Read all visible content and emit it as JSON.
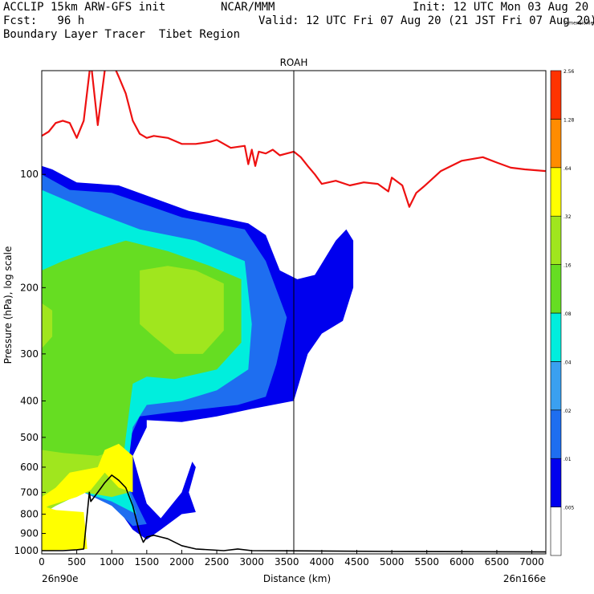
{
  "header": {
    "line1_left": "ACCLIP 15km ARW-GFS init",
    "line1_mid": "NCAR/MMM",
    "line1_right": "Init: 12 UTC Mon 03 Aug 20",
    "line2_left": "Fcst:   96 h",
    "line2_right": "Valid: 12 UTC Fri 07 Aug 20 (21 JST Fri 07 Aug 20)",
    "line3_left": "Boundary Layer Tracer  Tibet Region"
  },
  "colors": {
    "red_line": "#ee1111",
    "terrain_line": "#000000",
    "levels": [
      "#ffffff",
      "#0000ee",
      "#1e6ef0",
      "#3aa0f0",
      "#00eedd",
      "#66dd22",
      "#a0e61e",
      "#ffff00",
      "#ff8c00",
      "#ff3300"
    ]
  },
  "chart_data": {
    "type": "heatmap",
    "title": "ROAH",
    "xlabel": "Distance (km)",
    "ylabel": "Pressure (hPa), log scale",
    "x_ticks": [
      0,
      500,
      1000,
      1500,
      2000,
      2500,
      3000,
      3500,
      4000,
      4500,
      5000,
      5500,
      6000,
      6500,
      7000
    ],
    "y_ticks": [
      100,
      200,
      300,
      400,
      500,
      600,
      700,
      800,
      900,
      1000
    ],
    "xlim": [
      0,
      7200
    ],
    "ylim_hpa": [
      1020,
      53
    ],
    "y_log_scale": true,
    "x_endpoints": {
      "left": "26n90e",
      "right": "26n166e"
    },
    "vertical_marker_km": 3600,
    "colorbar_labels": [
      ".005",
      ".01",
      ".02",
      ".04",
      ".08",
      ".16",
      ".32",
      ".64",
      "1.28",
      "2.56",
      "Dimensionless"
    ],
    "series": [
      {
        "values": [
          [
            0,
            79
          ],
          [
            100,
            77
          ],
          [
            200,
            73
          ],
          [
            300,
            72
          ],
          [
            400,
            73
          ],
          [
            500,
            80
          ],
          [
            600,
            72
          ],
          [
            700,
            50
          ],
          [
            800,
            74
          ],
          [
            900,
            53
          ],
          [
            1000,
            50
          ],
          [
            1100,
            55
          ],
          [
            1200,
            61
          ],
          [
            1300,
            72
          ],
          [
            1400,
            78
          ],
          [
            1500,
            80
          ],
          [
            1600,
            79
          ],
          [
            1800,
            80
          ],
          [
            2000,
            83
          ],
          [
            2200,
            83
          ],
          [
            2400,
            82
          ],
          [
            2500,
            81
          ],
          [
            2700,
            85
          ],
          [
            2900,
            84
          ],
          [
            2950,
            94
          ],
          [
            3000,
            86
          ],
          [
            3050,
            95
          ],
          [
            3100,
            87
          ],
          [
            3200,
            88
          ],
          [
            3300,
            86
          ],
          [
            3400,
            89
          ],
          [
            3500,
            88
          ],
          [
            3600,
            87
          ],
          [
            3700,
            90
          ],
          [
            3800,
            95
          ],
          [
            3900,
            100
          ],
          [
            4000,
            106
          ],
          [
            4200,
            104
          ],
          [
            4400,
            107
          ],
          [
            4600,
            105
          ],
          [
            4800,
            106
          ],
          [
            4950,
            111
          ],
          [
            5000,
            102
          ],
          [
            5150,
            107
          ],
          [
            5250,
            122
          ],
          [
            5350,
            112
          ],
          [
            5450,
            108
          ],
          [
            5500,
            106
          ],
          [
            5700,
            98
          ],
          [
            6000,
            92
          ],
          [
            6300,
            90
          ],
          [
            6500,
            93
          ],
          [
            6700,
            96
          ],
          [
            6900,
            97
          ],
          [
            7200,
            98
          ]
        ]
      },
      {
        "values": [
          [
            0,
            1000
          ],
          [
            300,
            1000
          ],
          [
            500,
            995
          ],
          [
            600,
            990
          ],
          [
            680,
            700
          ],
          [
            700,
            740
          ],
          [
            800,
            700
          ],
          [
            900,
            660
          ],
          [
            1000,
            630
          ],
          [
            1100,
            650
          ],
          [
            1200,
            680
          ],
          [
            1300,
            760
          ],
          [
            1400,
            900
          ],
          [
            1450,
            950
          ],
          [
            1500,
            920
          ],
          [
            1600,
            910
          ],
          [
            1700,
            920
          ],
          [
            1800,
            930
          ],
          [
            2000,
            970
          ],
          [
            2200,
            990
          ],
          [
            2600,
            1000
          ],
          [
            2800,
            990
          ],
          [
            3000,
            1000
          ],
          [
            4000,
            1002
          ],
          [
            5000,
            1005
          ],
          [
            7200,
            1008
          ]
        ]
      }
    ],
    "contour_regions": [
      {
        "level": ".01",
        "outline": [
          [
            0,
            95
          ],
          [
            150,
            97
          ],
          [
            500,
            105
          ],
          [
            1100,
            107
          ],
          [
            2100,
            125
          ],
          [
            2950,
            135
          ],
          [
            3200,
            145
          ],
          [
            3400,
            180
          ],
          [
            3650,
            190
          ],
          [
            3900,
            185
          ],
          [
            4200,
            150
          ],
          [
            4350,
            140
          ],
          [
            4450,
            150
          ],
          [
            4450,
            200
          ],
          [
            4300,
            245
          ],
          [
            4000,
            265
          ],
          [
            3800,
            300
          ],
          [
            3600,
            400
          ],
          [
            3000,
            420
          ],
          [
            2500,
            440
          ],
          [
            2000,
            455
          ],
          [
            1500,
            450
          ],
          [
            1500,
            470
          ],
          [
            1300,
            560
          ],
          [
            1400,
            650
          ],
          [
            1500,
            750
          ],
          [
            1700,
            820
          ],
          [
            2000,
            700
          ],
          [
            2150,
            580
          ],
          [
            2200,
            600
          ],
          [
            2100,
            700
          ],
          [
            2200,
            790
          ],
          [
            2000,
            800
          ],
          [
            1700,
            880
          ],
          [
            1500,
            935
          ],
          [
            1300,
            880
          ],
          [
            1100,
            780
          ],
          [
            900,
            700
          ],
          [
            600,
            660
          ],
          [
            300,
            690
          ],
          [
            0,
            780
          ]
        ]
      },
      {
        "level": ".02",
        "outline": [
          [
            0,
            100
          ],
          [
            400,
            110
          ],
          [
            1000,
            112
          ],
          [
            2000,
            130
          ],
          [
            2900,
            140
          ],
          [
            3200,
            170
          ],
          [
            3500,
            240
          ],
          [
            3350,
            320
          ],
          [
            3200,
            390
          ],
          [
            2800,
            410
          ],
          [
            2300,
            420
          ],
          [
            1800,
            430
          ],
          [
            1400,
            440
          ],
          [
            1200,
            530
          ],
          [
            1200,
            650
          ],
          [
            1400,
            780
          ],
          [
            1500,
            850
          ],
          [
            1300,
            860
          ],
          [
            1000,
            760
          ],
          [
            600,
            700
          ],
          [
            300,
            720
          ],
          [
            0,
            800
          ]
        ]
      },
      {
        "level": ".08",
        "outline": [
          [
            0,
            110
          ],
          [
            700,
            125
          ],
          [
            1400,
            140
          ],
          [
            2200,
            150
          ],
          [
            2900,
            170
          ],
          [
            3000,
            250
          ],
          [
            2950,
            330
          ],
          [
            2500,
            375
          ],
          [
            2000,
            400
          ],
          [
            1500,
            410
          ],
          [
            1300,
            470
          ],
          [
            1250,
            560
          ],
          [
            1250,
            700
          ],
          [
            1350,
            800
          ],
          [
            1000,
            740
          ],
          [
            600,
            700
          ],
          [
            200,
            760
          ],
          [
            0,
            800
          ]
        ]
      },
      {
        "level": ".16",
        "outline": [
          [
            0,
            180
          ],
          [
            300,
            170
          ],
          [
            700,
            160
          ],
          [
            1200,
            150
          ],
          [
            1800,
            160
          ],
          [
            2400,
            175
          ],
          [
            2850,
            190
          ],
          [
            2850,
            280
          ],
          [
            2500,
            330
          ],
          [
            1900,
            350
          ],
          [
            1500,
            345
          ],
          [
            1300,
            360
          ],
          [
            1200,
            500
          ],
          [
            1150,
            600
          ],
          [
            1200,
            700
          ],
          [
            1000,
            700
          ],
          [
            600,
            700
          ],
          [
            200,
            750
          ],
          [
            0,
            780
          ]
        ]
      },
      {
        "level": ".32",
        "outline": [
          [
            1400,
            180
          ],
          [
            1800,
            175
          ],
          [
            2200,
            180
          ],
          [
            2600,
            195
          ],
          [
            2600,
            260
          ],
          [
            2300,
            300
          ],
          [
            1900,
            300
          ],
          [
            1600,
            270
          ],
          [
            1400,
            250
          ]
        ]
      },
      {
        "level": ".32",
        "outline": [
          [
            0,
            220
          ],
          [
            150,
            230
          ],
          [
            150,
            270
          ],
          [
            0,
            290
          ]
        ]
      },
      {
        "level": ".32",
        "outline": [
          [
            0,
            540
          ],
          [
            300,
            550
          ],
          [
            800,
            560
          ],
          [
            1100,
            540
          ],
          [
            1250,
            580
          ],
          [
            1250,
            700
          ],
          [
            1000,
            720
          ],
          [
            600,
            700
          ],
          [
            200,
            760
          ],
          [
            0,
            800
          ]
        ]
      },
      {
        "level": ".64",
        "outline": [
          [
            400,
            620
          ],
          [
            800,
            600
          ],
          [
            900,
            540
          ],
          [
            1100,
            520
          ],
          [
            1300,
            560
          ],
          [
            1300,
            700
          ],
          [
            1100,
            680
          ],
          [
            900,
            620
          ],
          [
            700,
            690
          ],
          [
            500,
            720
          ],
          [
            300,
            740
          ],
          [
            100,
            760
          ],
          [
            0,
            780
          ],
          [
            0,
            720
          ],
          [
            200,
            680
          ]
        ]
      },
      {
        "level": ".64",
        "outline": [
          [
            0,
            760
          ],
          [
            200,
            780
          ],
          [
            600,
            790
          ],
          [
            650,
            990
          ],
          [
            0,
            1000
          ]
        ]
      }
    ]
  }
}
